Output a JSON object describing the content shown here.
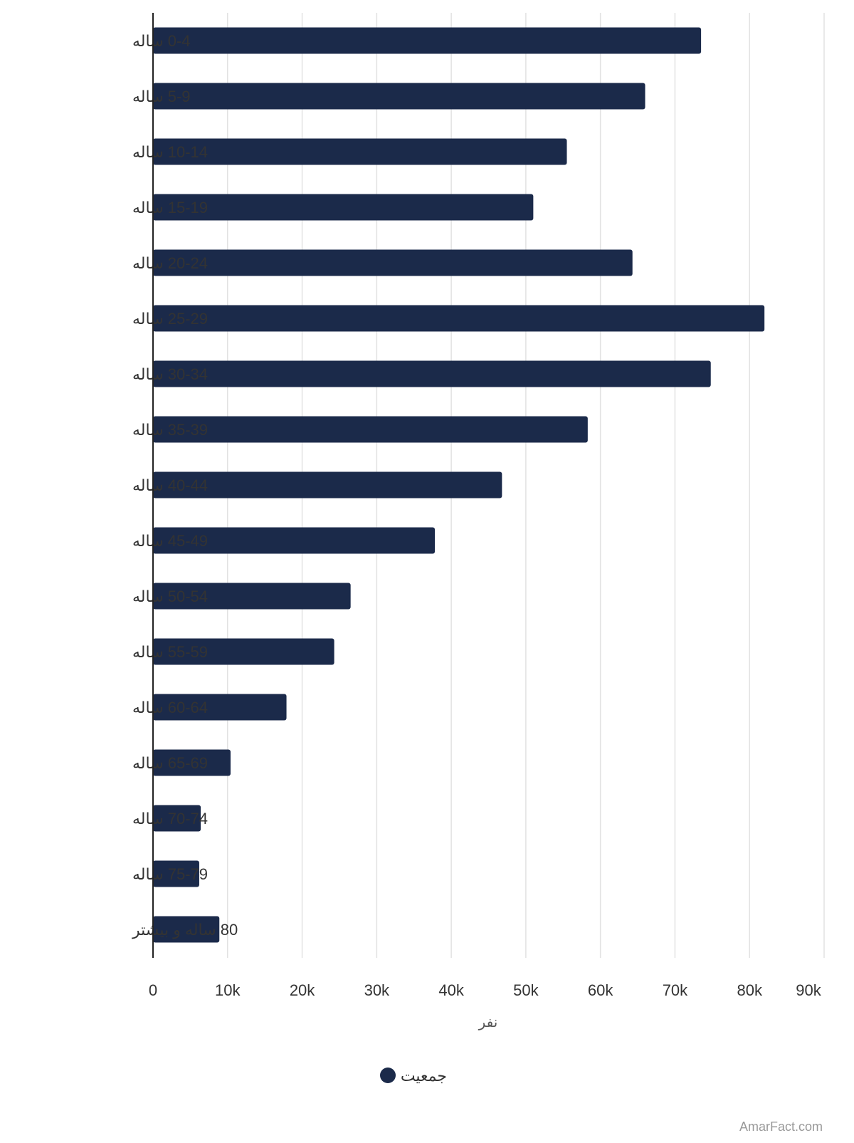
{
  "chart_data": {
    "type": "bar",
    "orientation": "horizontal",
    "categories": [
      "0-4 ساله",
      "5-9 ساله",
      "10-14 ساله",
      "15-19 ساله",
      "20-24 ساله",
      "25-29 ساله",
      "30-34 ساله",
      "35-39 ساله",
      "40-44 ساله",
      "45-49 ساله",
      "50-54 ساله",
      "55-59 ساله",
      "60-64 ساله",
      "65-69 ساله",
      "70-74 ساله",
      "75-79 ساله",
      "80 ساله و بیشتر"
    ],
    "series": [
      {
        "name": "جمعیت",
        "color": "#1b2a4a",
        "values": [
          73500,
          66000,
          55500,
          51000,
          64300,
          82000,
          74800,
          58300,
          46800,
          37800,
          26500,
          24300,
          17900,
          10400,
          6400,
          6200,
          8900
        ]
      }
    ],
    "xlabel": "نفر",
    "xlim": [
      0,
      90000
    ],
    "xticks": [
      0,
      10000,
      20000,
      30000,
      40000,
      50000,
      60000,
      70000,
      80000,
      90000
    ],
    "xtick_labels": [
      "0",
      "10k",
      "20k",
      "30k",
      "40k",
      "50k",
      "60k",
      "70k",
      "80k",
      "90k"
    ],
    "grid": true,
    "legend_position": "bottom"
  },
  "watermark": "AmarFact.com"
}
